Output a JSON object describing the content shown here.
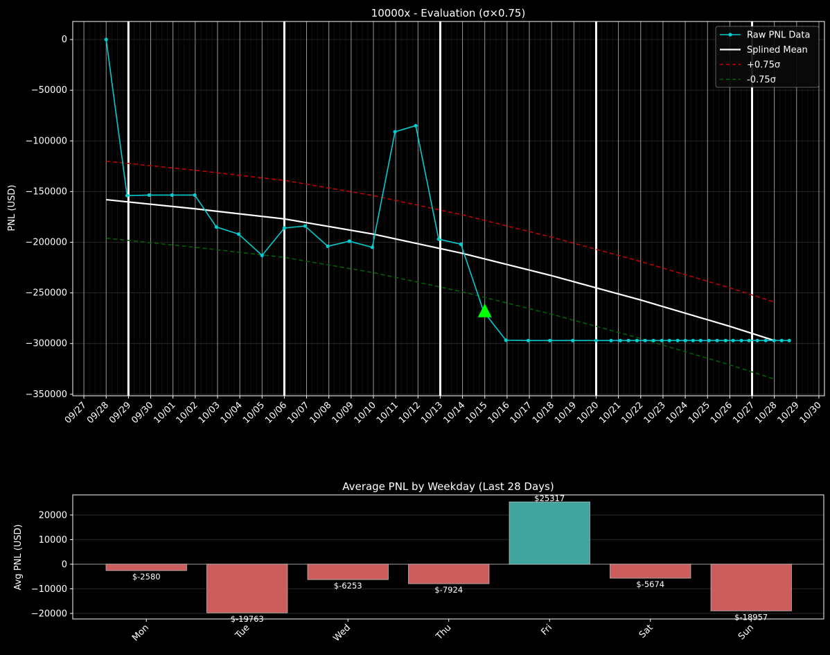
{
  "colors": {
    "background": "#000000",
    "raw": "#00ced1",
    "mean": "#ffffff",
    "upper": "#cc0000",
    "lower": "#006400",
    "marker": "#00ff00",
    "neg_bar": "#cd5c5c",
    "pos_bar": "#40a59f"
  },
  "chart_data": [
    {
      "type": "line",
      "title": "10000x - Evaluation (σ×0.75)",
      "xlabel": "",
      "ylabel": "PNL (USD)",
      "x_units": "days since 09/28",
      "xlim": [
        -1.5,
        32.25
      ],
      "ylim": [
        -351500,
        17800
      ],
      "yticks": [
        0,
        -50000,
        -100000,
        -150000,
        -200000,
        -250000,
        -300000,
        -350000
      ],
      "ytick_labels": [
        "0",
        "−50000",
        "−100000",
        "−150000",
        "−200000",
        "−250000",
        "−300000",
        "−350000"
      ],
      "xticks": [
        -1,
        0,
        1,
        2,
        3,
        4,
        5,
        6,
        7,
        8,
        9,
        10,
        11,
        12,
        13,
        14,
        15,
        16,
        17,
        18,
        19,
        20,
        21,
        22,
        23,
        24,
        25,
        26,
        27,
        28,
        29,
        30,
        31,
        32
      ],
      "xtick_labels": [
        "09/27",
        "09/28",
        "09/29",
        "09/30",
        "10/01",
        "10/02",
        "10/03",
        "10/04",
        "10/05",
        "10/06",
        "10/07",
        "10/08",
        "10/09",
        "10/10",
        "10/11",
        "10/12",
        "10/13",
        "10/14",
        "10/15",
        "10/16",
        "10/17",
        "10/18",
        "10/19",
        "10/20",
        "10/21",
        "10/22",
        "10/23",
        "10/24",
        "10/25",
        "10/26",
        "10/27",
        "10/28",
        "10/29",
        "10/30"
      ],
      "week_lines": [
        1,
        8,
        15,
        22,
        29
      ],
      "grid": true,
      "legend": {
        "position": "top-right",
        "entries": [
          "Raw PNL Data",
          "Splined Mean",
          "+0.75σ",
          "-0.75σ"
        ]
      },
      "series": [
        {
          "name": "Raw PNL Data",
          "style": "line-dots",
          "x": [
            0,
            0.94,
            1.93,
            2.96,
            3.98,
            4.95,
            5.95,
            7.0,
            8.0,
            8.93,
            9.95,
            10.92,
            11.95,
            12.97,
            13.9,
            14.93,
            15.93,
            16.95,
            17.95,
            18.95,
            19.92,
            20.95,
            22.0,
            22.67,
            23.08,
            23.45,
            23.83,
            24.2,
            24.57,
            24.95,
            25.29,
            25.66,
            26.0,
            26.35,
            26.69,
            27.06,
            27.43,
            27.81,
            28.15,
            28.52,
            28.86,
            29.24,
            29.61,
            29.98,
            30.33,
            30.67
          ],
          "y": [
            0,
            -154000,
            -153500,
            -153500,
            -153500,
            -185000,
            -192000,
            -213000,
            -186000,
            -184000,
            -204000,
            -199000,
            -205000,
            -91000,
            -85000,
            -197000,
            -202000,
            -268600,
            -296700,
            -297000,
            -297000,
            -297000,
            -297000,
            -297000,
            -297000,
            -297000,
            -297000,
            -297000,
            -297000,
            -297000,
            -297000,
            -297000,
            -297000,
            -297000,
            -297000,
            -297000,
            -297000,
            -297000,
            -297000,
            -297000,
            -297000,
            -297000,
            -297000,
            -297000,
            -297000,
            -297000
          ]
        },
        {
          "name": "Splined Mean",
          "style": "solid",
          "x": [
            0,
            4,
            8,
            12,
            16,
            20,
            24,
            28,
            30
          ],
          "y": [
            -158000,
            -167000,
            -177000,
            -192000,
            -211000,
            -233000,
            -257000,
            -283000,
            -297000
          ]
        },
        {
          "name": "+0.75σ",
          "style": "dashed",
          "x": [
            0,
            4,
            8,
            12,
            16,
            20,
            24,
            28,
            30
          ],
          "y": [
            -120000,
            -129000,
            -139000,
            -154000,
            -173000,
            -195000,
            -219000,
            -245000,
            -259000
          ]
        },
        {
          "name": "-0.75σ",
          "style": "dashed",
          "x": [
            0,
            4,
            8,
            12,
            16,
            20,
            24,
            28,
            30
          ],
          "y": [
            -196000,
            -205000,
            -215000,
            -230000,
            -249000,
            -271000,
            -295000,
            -321000,
            -335000
          ]
        }
      ],
      "markers": [
        {
          "name": "current-marker",
          "shape": "triangle",
          "x": 17.0,
          "y": -268600
        }
      ]
    },
    {
      "type": "bar",
      "title": "Average PNL by Weekday (Last 28 Days)",
      "xlabel": "",
      "ylabel": "Avg PNL (USD)",
      "categories": [
        "Mon",
        "Tue",
        "Wed",
        "Thu",
        "Fri",
        "Sat",
        "Sun"
      ],
      "values": [
        -2580,
        -19763,
        -6253,
        -7924,
        25317,
        -5674,
        -18957
      ],
      "data_labels": [
        "$-2580",
        "$-19763",
        "$-6253",
        "$-7924",
        "$25317",
        "$-5674",
        "$-18957"
      ],
      "ylim": [
        -22250,
        28170
      ],
      "xlim": [
        -0.73,
        6.72
      ],
      "yticks": [
        20000,
        10000,
        0,
        -10000,
        -20000
      ],
      "ytick_labels": [
        "20000",
        "10000",
        "0",
        "−10000",
        "−20000"
      ],
      "grid": true
    }
  ]
}
